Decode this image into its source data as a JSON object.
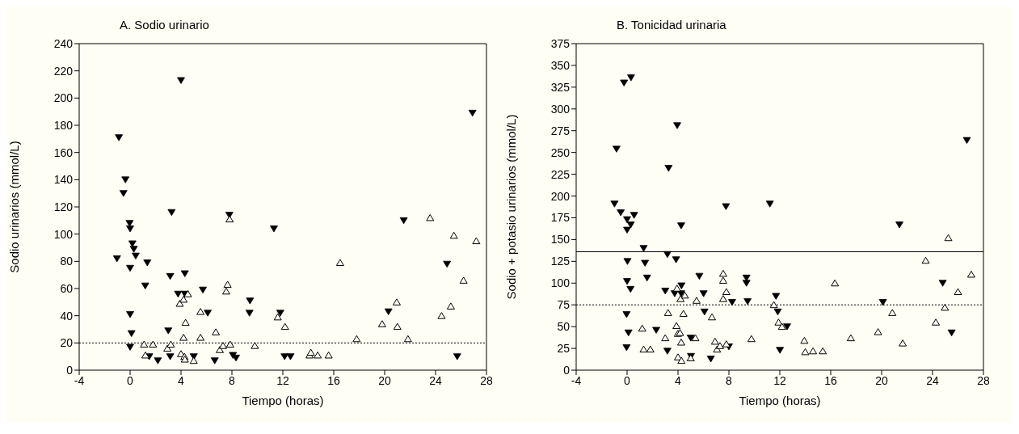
{
  "chart_data": [
    {
      "type": "scatter",
      "title": "A. Sodio urinario",
      "xlabel": "Tiempo (horas)",
      "ylabel": "Sodio urinarios (mmol/L)",
      "xlim": [
        -4,
        28
      ],
      "xticks": [
        -4,
        0,
        4,
        8,
        12,
        16,
        20,
        24,
        28
      ],
      "ylim": [
        0,
        240
      ],
      "yticks": [
        0,
        20,
        40,
        60,
        80,
        100,
        120,
        140,
        160,
        180,
        200,
        220,
        240
      ],
      "ref_lines": [
        {
          "axis": "y",
          "value": 20,
          "line_style": "dotted",
          "color": "#000000"
        }
      ],
      "series": [
        {
          "color": "#000000",
          "marker": "triangle-down",
          "x": [
            -0.88,
            -0.37,
            -0.52,
            -0.04,
            0,
            0.18,
            0.29,
            0.44,
            -1.03,
            0,
            1.35,
            1.19,
            0,
            0.11,
            0,
            3.26,
            4.0,
            4.3,
            3.15,
            3.77,
            4.3,
            5.72,
            6.1,
            3.0,
            1.5,
            2.18,
            3.15,
            5.0,
            6.65,
            7.8,
            9.42,
            9.38,
            8.08,
            8.32,
            11.3,
            11.8,
            12.14,
            12.6,
            21.5,
            24.9,
            20.3,
            25.7,
            26.9
          ],
          "values": [
            171,
            140,
            130,
            108,
            104,
            93,
            89,
            84,
            82,
            75,
            79,
            62,
            41,
            27,
            17,
            116,
            213,
            71,
            69,
            56,
            56,
            59,
            42,
            29,
            10,
            7,
            10,
            10,
            7,
            114,
            51,
            42,
            11,
            9,
            104,
            42,
            10,
            10,
            110,
            78,
            43,
            10,
            189
          ]
        },
        {
          "color": "#000000",
          "marker": "triangle",
          "x": [
            1.1,
            1.8,
            1.2,
            2.93,
            3.2,
            3.9,
            4.2,
            4.54,
            4.36,
            4.2,
            4.0,
            4.27,
            4.3,
            5.0,
            5.53,
            5.53,
            6.74,
            7.05,
            7.3,
            7.86,
            7.55,
            7.66,
            7.82,
            9.8,
            11.6,
            12.17,
            16.5,
            14.1,
            14.2,
            14.74,
            15.6,
            17.8,
            19.8,
            20.95,
            21.0,
            21.83,
            23.57,
            25.44,
            27.2,
            26.2,
            25.2,
            24.47
          ],
          "values": [
            19,
            19,
            11,
            16,
            19,
            49,
            52,
            56,
            35,
            24,
            12,
            10,
            8,
            7,
            24,
            43,
            28,
            15,
            18,
            19,
            58,
            63,
            111,
            18,
            39,
            32,
            79,
            11,
            13,
            11,
            11,
            23,
            34,
            50,
            32,
            23,
            112,
            99,
            95,
            66,
            47,
            40
          ]
        }
      ]
    },
    {
      "type": "scatter",
      "title": "B. Tonicidad urinaria",
      "xlabel": "Tiempo (horas)",
      "ylabel": "Sodio + potasio urinarios (mmol/L)",
      "xlim": [
        -4,
        28
      ],
      "xticks": [
        -4,
        0,
        4,
        8,
        12,
        16,
        20,
        24,
        28
      ],
      "ylim": [
        0,
        375
      ],
      "yticks": [
        0,
        25,
        50,
        75,
        100,
        125,
        150,
        175,
        200,
        225,
        250,
        275,
        300,
        325,
        350,
        375
      ],
      "ref_lines": [
        {
          "axis": "y",
          "value": 136,
          "line_style": "solid",
          "color": "#000000"
        },
        {
          "axis": "y",
          "value": 75,
          "line_style": "dotted",
          "color": "#000000"
        }
      ],
      "series": [
        {
          "color": "#000000",
          "marker": "triangle-down",
          "x": [
            -0.24,
            0.31,
            -0.83,
            3.94,
            3.26,
            4.25,
            -0.99,
            -0.5,
            0.0,
            0.29,
            0.0,
            0.55,
            1.3,
            0.03,
            1.41,
            1.57,
            0,
            0.27,
            -0.04,
            0.11,
            -0.04,
            3.17,
            3.85,
            5.68,
            3.0,
            3.74,
            4.27,
            4.25,
            6.01,
            6.08,
            2.29,
            3.17,
            5.0,
            5.02,
            6.58,
            7.77,
            8.25,
            9.38,
            9.38,
            9.47,
            8.0,
            11.22,
            11.7,
            11.84,
            12.57,
            12.01,
            20.1,
            21.4,
            26.7,
            24.8,
            25.5
          ],
          "values": [
            330,
            336,
            254,
            281,
            232,
            166,
            191,
            181,
            173,
            167,
            161,
            178,
            140,
            125,
            123,
            106,
            102,
            93,
            64,
            43,
            26,
            133,
            127,
            108,
            91,
            88,
            97,
            88,
            88,
            67,
            46,
            22,
            37,
            16,
            13,
            188,
            78,
            106,
            100,
            79,
            27,
            191,
            85,
            67,
            50,
            23,
            78,
            167,
            264,
            100,
            43
          ]
        },
        {
          "color": "#000000",
          "marker": "triangle",
          "x": [
            1.19,
            1.3,
            1.83,
            3.0,
            3.22,
            3.88,
            3.92,
            4.2,
            4.54,
            4.43,
            3.99,
            4.16,
            4.25,
            4.0,
            4.27,
            5.0,
            5.37,
            5.46,
            6.67,
            6.91,
            7.07,
            7.3,
            7.55,
            7.55,
            7.55,
            7.8,
            7.8,
            9.77,
            11.53,
            11.9,
            12.17,
            13.93,
            14.0,
            14.61,
            15.38,
            16.33,
            17.58,
            19.72,
            20.8,
            20.84,
            21.66,
            23.46,
            25.24,
            27.04,
            26.0,
            24.97,
            24.26
          ],
          "values": [
            48,
            24,
            24,
            37,
            66,
            51,
            94,
            82,
            86,
            65,
            42,
            43,
            32,
            15,
            11,
            14,
            37,
            80,
            61,
            33,
            24,
            28,
            82,
            103,
            111,
            90,
            30,
            36,
            75,
            55,
            50,
            34,
            21,
            22,
            22,
            100,
            37,
            44,
            null,
            66,
            31,
            126,
            152,
            110,
            90,
            72,
            55
          ]
        }
      ]
    }
  ]
}
